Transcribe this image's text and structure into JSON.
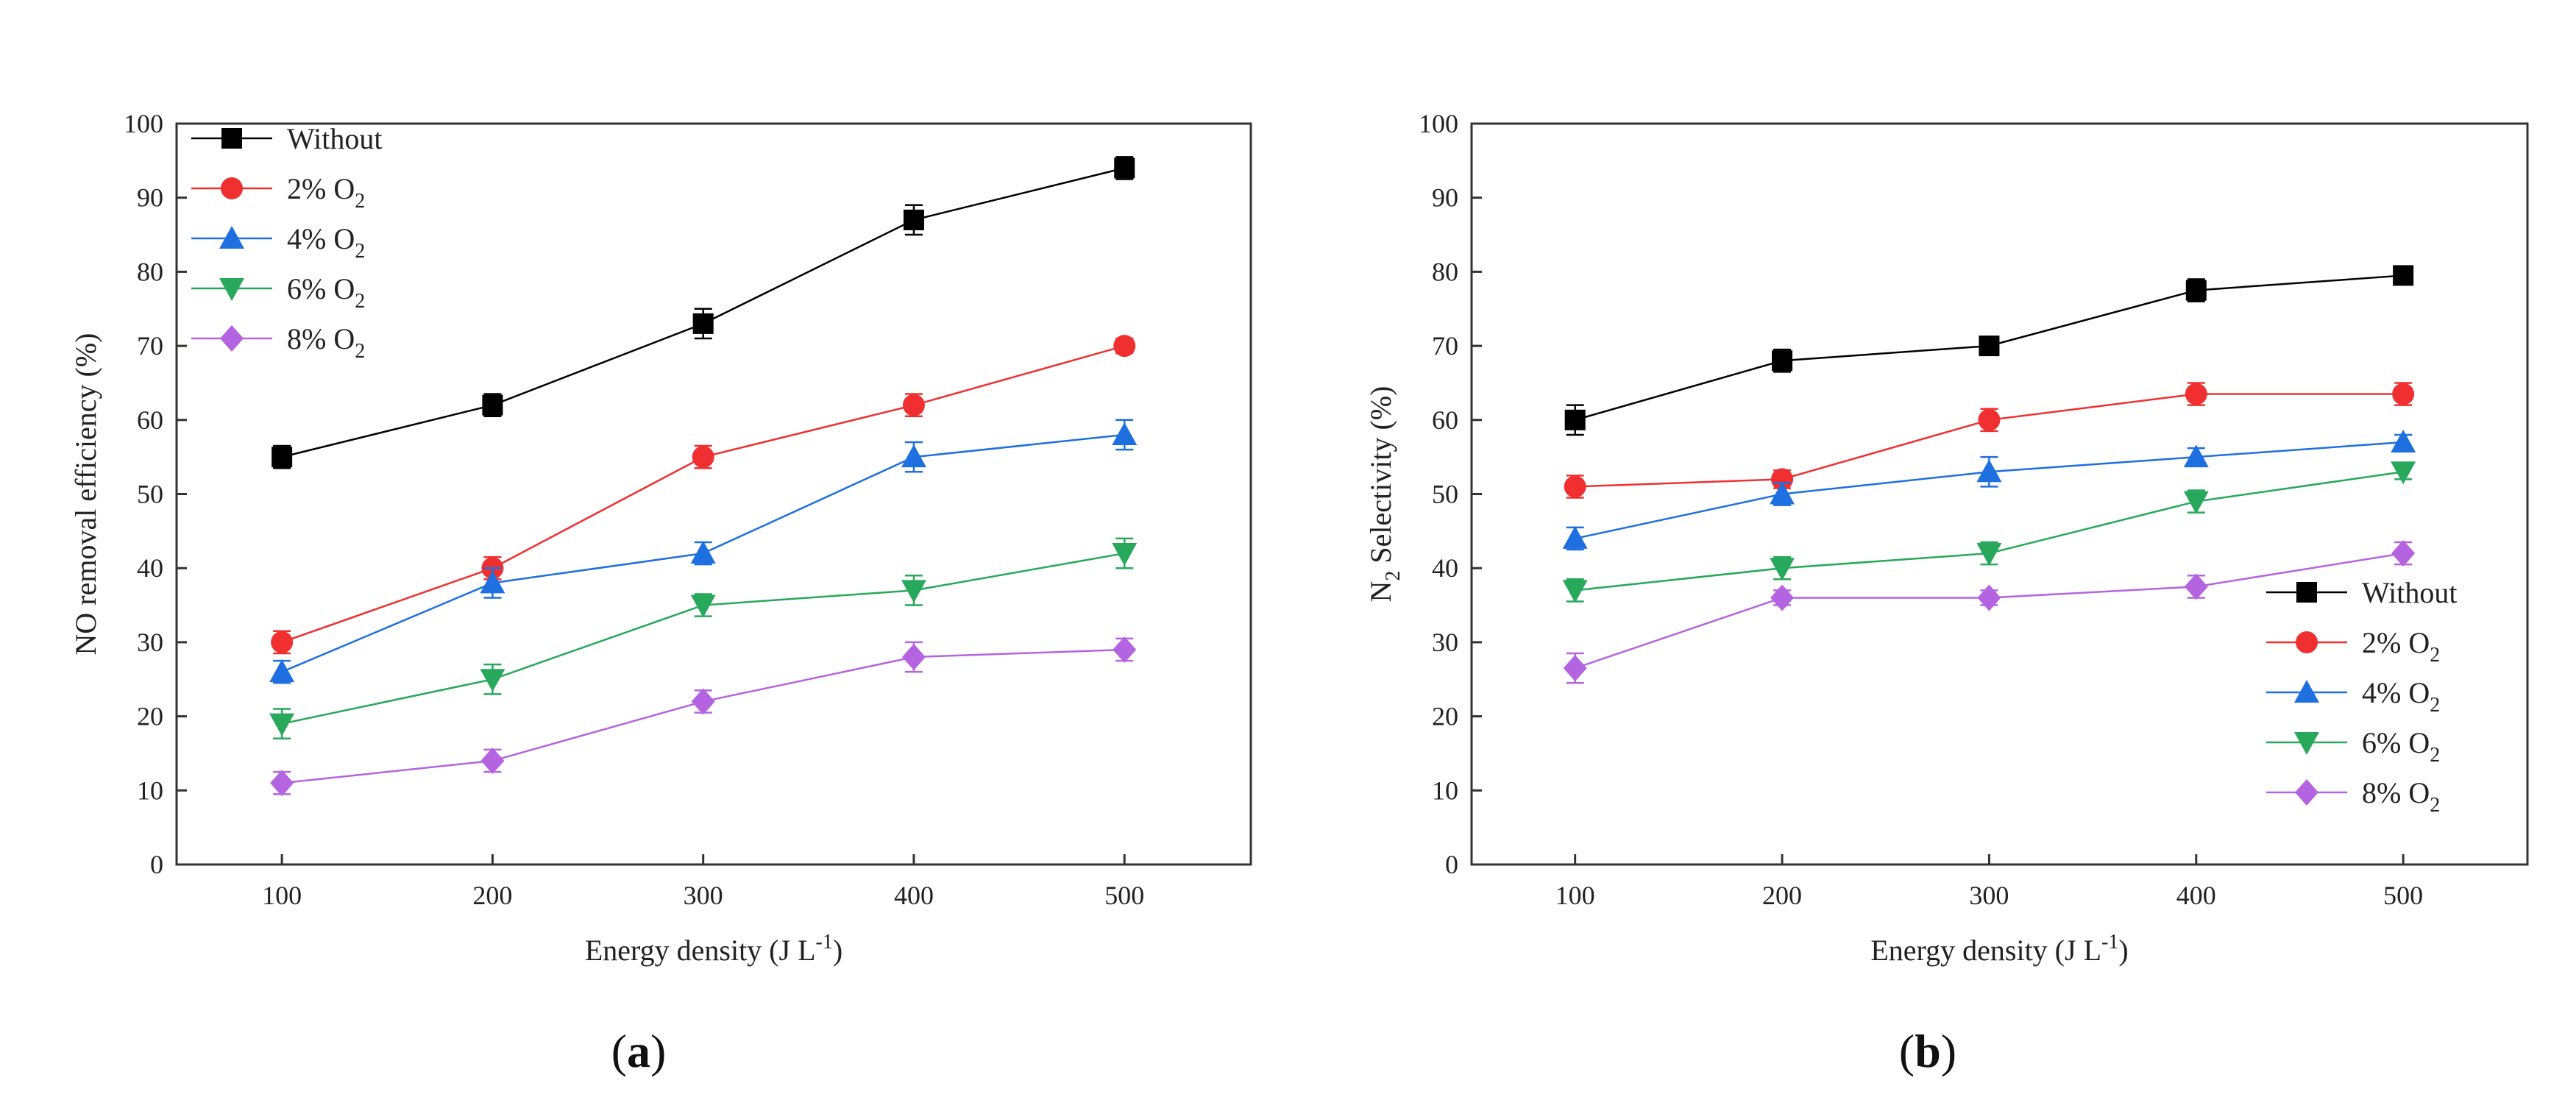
{
  "chart_data": [
    {
      "type": "line",
      "panel_label": "a",
      "xlabel": "Energy density (J L",
      "xlabel_sup": "-1",
      "xlabel_close": ")",
      "ylabel": "NO removal efficiency (%)",
      "ylabel_sub": "",
      "ylabel_rest": "",
      "x": [
        100,
        200,
        300,
        400,
        500
      ],
      "xticks": [
        100,
        200,
        300,
        400,
        500
      ],
      "yticks": [
        0,
        10,
        20,
        30,
        40,
        50,
        60,
        70,
        80,
        90,
        100
      ],
      "xlim": [
        50,
        560
      ],
      "ylim": [
        0,
        100
      ],
      "legend_position": "top-left",
      "series": [
        {
          "name": "Without",
          "sub": "",
          "color": "#000000",
          "marker": "square",
          "values": [
            55,
            62,
            73,
            87,
            94
          ],
          "errors": [
            1.5,
            1.5,
            2,
            2,
            1.5
          ]
        },
        {
          "name": "2% O",
          "sub": "2",
          "color": "#f03030",
          "marker": "circle",
          "values": [
            30,
            40,
            55,
            62,
            70
          ],
          "errors": [
            1.5,
            1.5,
            1.5,
            1.5,
            1
          ]
        },
        {
          "name": "4% O",
          "sub": "2",
          "color": "#1e6fe0",
          "marker": "triangle-up",
          "values": [
            26,
            38,
            42,
            55,
            58
          ],
          "errors": [
            1.5,
            2,
            1.5,
            2,
            2
          ]
        },
        {
          "name": "6% O",
          "sub": "2",
          "color": "#27a85a",
          "marker": "triangle-down",
          "values": [
            19,
            25,
            35,
            37,
            42
          ],
          "errors": [
            2,
            2,
            1.5,
            2,
            2
          ]
        },
        {
          "name": "8% O",
          "sub": "2",
          "color": "#b464e0",
          "marker": "diamond",
          "values": [
            11,
            14,
            22,
            28,
            29
          ],
          "errors": [
            1.5,
            1.5,
            1.5,
            2,
            1.5
          ]
        }
      ]
    },
    {
      "type": "line",
      "panel_label": "b",
      "xlabel": "Energy density (J L",
      "xlabel_sup": "-1",
      "xlabel_close": ")",
      "ylabel": "N",
      "ylabel_sub": "2",
      "ylabel_rest": " Selectivity (%)",
      "x": [
        100,
        200,
        300,
        400,
        500
      ],
      "xticks": [
        100,
        200,
        300,
        400,
        500
      ],
      "yticks": [
        0,
        10,
        20,
        30,
        40,
        50,
        60,
        70,
        80,
        90,
        100
      ],
      "xlim": [
        50,
        560
      ],
      "ylim": [
        0,
        100
      ],
      "legend_position": "bottom-right",
      "series": [
        {
          "name": "Without",
          "sub": "",
          "color": "#000000",
          "marker": "square",
          "values": [
            60,
            68,
            70,
            77.5,
            79.5
          ],
          "errors": [
            2,
            1.5,
            1,
            1.5,
            1.2
          ]
        },
        {
          "name": "2% O",
          "sub": "2",
          "color": "#f03030",
          "marker": "circle",
          "values": [
            51,
            52,
            60,
            63.5,
            63.5
          ],
          "errors": [
            1.5,
            1.2,
            1.5,
            1.5,
            1.5
          ]
        },
        {
          "name": "4% O",
          "sub": "2",
          "color": "#1e6fe0",
          "marker": "triangle-up",
          "values": [
            44,
            50,
            53,
            55,
            57
          ],
          "errors": [
            1.5,
            1.5,
            2,
            1.2,
            1
          ]
        },
        {
          "name": "6% O",
          "sub": "2",
          "color": "#27a85a",
          "marker": "triangle-down",
          "values": [
            37,
            40,
            42,
            49,
            53
          ],
          "errors": [
            1.5,
            1.5,
            1.5,
            1.5,
            1
          ]
        },
        {
          "name": "8% O",
          "sub": "2",
          "color": "#b464e0",
          "marker": "diamond",
          "values": [
            26.5,
            36,
            36,
            37.5,
            42
          ],
          "errors": [
            2,
            1,
            1,
            1.5,
            1.5
          ]
        }
      ]
    }
  ]
}
